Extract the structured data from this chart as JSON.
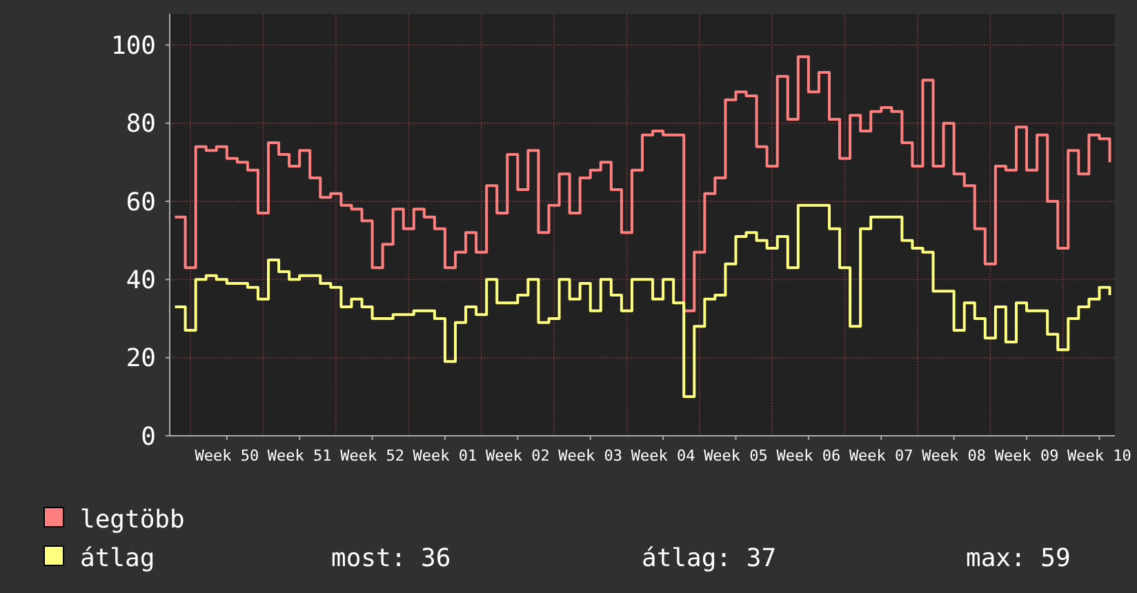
{
  "chart_data": {
    "type": "step",
    "categories": [
      null,
      null,
      null,
      null,
      null,
      "Week 50",
      null,
      null,
      null,
      null,
      null,
      null,
      "Week 51",
      null,
      null,
      null,
      null,
      null,
      null,
      "Week 52",
      null,
      null,
      null,
      null,
      null,
      null,
      "Week 01",
      null,
      null,
      null,
      null,
      null,
      null,
      "Week 02",
      null,
      null,
      null,
      null,
      null,
      null,
      "Week 03",
      null,
      null,
      null,
      null,
      null,
      null,
      "Week 04",
      null,
      null,
      null,
      null,
      null,
      null,
      "Week 05",
      null,
      null,
      null,
      null,
      null,
      null,
      "Week 06",
      null,
      null,
      null,
      null,
      null,
      null,
      "Week 07",
      null,
      null,
      null,
      null,
      null,
      null,
      "Week 08",
      null,
      null,
      null,
      null,
      null,
      null,
      "Week 09",
      null,
      null,
      null,
      null,
      null,
      null,
      "Week 10",
      null
    ],
    "series": [
      {
        "name": "legtöbb",
        "color": "#ff7f7f",
        "values": [
          56,
          43,
          74,
          73,
          74,
          71,
          70,
          68,
          57,
          75,
          72,
          69,
          73,
          66,
          61,
          62,
          59,
          58,
          55,
          43,
          49,
          58,
          53,
          58,
          56,
          53,
          43,
          47,
          52,
          47,
          64,
          57,
          72,
          63,
          73,
          52,
          59,
          67,
          57,
          66,
          68,
          70,
          63,
          52,
          68,
          77,
          78,
          77,
          77,
          32,
          47,
          62,
          66,
          86,
          88,
          87,
          74,
          69,
          92,
          81,
          97,
          88,
          93,
          81,
          71,
          82,
          78,
          83,
          84,
          83,
          75,
          69,
          91,
          69,
          80,
          67,
          64,
          53,
          44,
          69,
          68,
          79,
          68,
          77,
          60,
          48,
          73,
          67,
          77,
          76,
          70
        ]
      },
      {
        "name": "átlag",
        "color": "#ffff7f",
        "values": [
          33,
          27,
          40,
          41,
          40,
          39,
          39,
          38,
          35,
          45,
          42,
          40,
          41,
          41,
          39,
          38,
          33,
          35,
          33,
          30,
          30,
          31,
          31,
          32,
          32,
          30,
          19,
          29,
          33,
          31,
          40,
          34,
          34,
          36,
          40,
          29,
          30,
          40,
          35,
          39,
          32,
          40,
          36,
          32,
          40,
          40,
          35,
          40,
          34,
          10,
          28,
          35,
          36,
          44,
          51,
          52,
          50,
          48,
          51,
          43,
          59,
          59,
          59,
          53,
          43,
          28,
          53,
          56,
          56,
          56,
          50,
          48,
          47,
          37,
          37,
          27,
          34,
          30,
          25,
          33,
          24,
          34,
          32,
          32,
          26,
          22,
          30,
          33,
          35,
          38,
          36
        ]
      }
    ],
    "ylim": [
      0,
      108
    ],
    "yticks": [
      0,
      20,
      40,
      60,
      80,
      100
    ],
    "grid": true,
    "legend": "bottom",
    "annotations": [
      "most: 36",
      "átlag: 37",
      "max: 59"
    ]
  }
}
